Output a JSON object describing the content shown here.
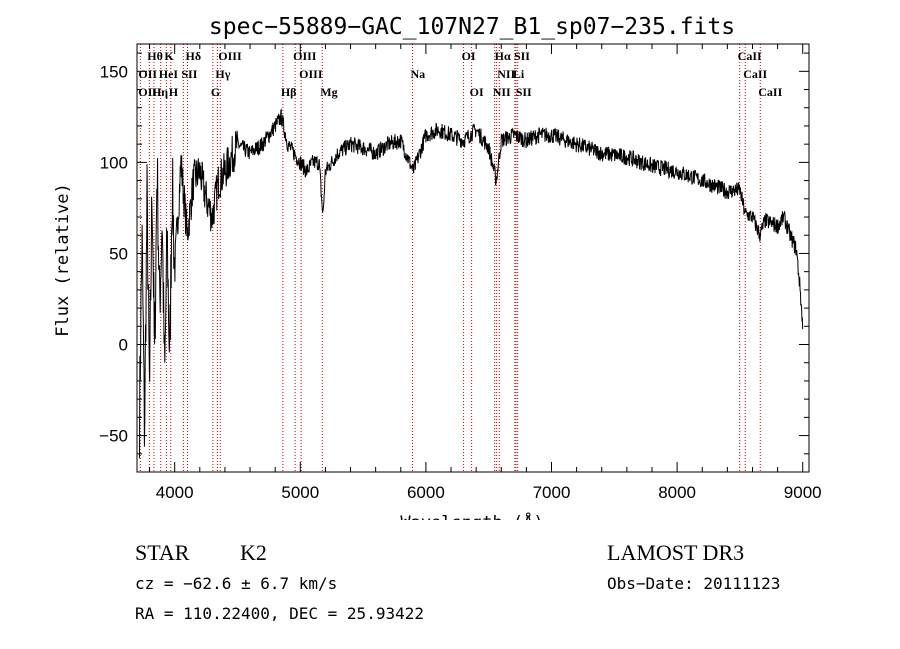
{
  "chart_data": {
    "type": "line",
    "title": "spec−55889−GAC_107N27_B1_sp07−235.fits",
    "xlabel": "Wavelength (Å)",
    "ylabel": "Flux (relative)",
    "xlim": [
      3700,
      9050
    ],
    "ylim": [
      -70,
      165
    ],
    "xticks": [
      4000,
      5000,
      6000,
      7000,
      8000,
      9000
    ],
    "yticks": [
      -50,
      0,
      50,
      100,
      150
    ],
    "ytick_labels": [
      "−50",
      "0",
      "50",
      "100",
      "150"
    ],
    "series": [
      {
        "name": "spectrum",
        "x": [
          3720,
          3740,
          3760,
          3780,
          3800,
          3820,
          3840,
          3860,
          3880,
          3900,
          3920,
          3940,
          3960,
          3980,
          4000,
          4050,
          4100,
          4150,
          4200,
          4250,
          4300,
          4350,
          4400,
          4500,
          4600,
          4700,
          4800,
          4850,
          4900,
          4950,
          5000,
          5050,
          5100,
          5150,
          5180,
          5200,
          5300,
          5400,
          5500,
          5600,
          5700,
          5800,
          5900,
          6000,
          6100,
          6200,
          6300,
          6400,
          6500,
          6560,
          6600,
          6700,
          6800,
          6900,
          7000,
          7200,
          7400,
          7600,
          7800,
          8000,
          8200,
          8400,
          8500,
          8540,
          8600,
          8660,
          8700,
          8800,
          8850,
          8900,
          8950,
          8980,
          9000
        ],
        "y": [
          -40,
          60,
          -50,
          80,
          -30,
          90,
          -10,
          100,
          20,
          70,
          -20,
          60,
          -10,
          90,
          40,
          100,
          60,
          90,
          95,
          80,
          70,
          90,
          95,
          110,
          105,
          110,
          120,
          125,
          110,
          105,
          100,
          95,
          100,
          100,
          70,
          95,
          105,
          110,
          108,
          105,
          110,
          112,
          95,
          115,
          118,
          115,
          112,
          118,
          108,
          90,
          112,
          115,
          112,
          115,
          115,
          110,
          105,
          103,
          98,
          95,
          90,
          84,
          85,
          72,
          70,
          60,
          68,
          65,
          70,
          60,
          52,
          30,
          10
        ]
      }
    ],
    "spectral_lines": [
      {
        "name": "Hθ",
        "wavelength": 3798,
        "row": 1
      },
      {
        "name": "K",
        "wavelength": 3934,
        "row": 1
      },
      {
        "name": "Hδ",
        "wavelength": 4102,
        "row": 1
      },
      {
        "name": "OIII",
        "wavelength": 4363,
        "row": 1
      },
      {
        "name": "OIII",
        "wavelength": 4959,
        "row": 1
      },
      {
        "name": "OI",
        "wavelength": 6300,
        "row": 1
      },
      {
        "name": "Hα",
        "wavelength": 6563,
        "row": 1
      },
      {
        "name": "SII",
        "wavelength": 6717,
        "row": 1
      },
      {
        "name": "CaII",
        "wavelength": 8498,
        "row": 1
      },
      {
        "name": "OII",
        "wavelength": 3727,
        "row": 2
      },
      {
        "name": "HeI",
        "wavelength": 3889,
        "row": 2
      },
      {
        "name": "SII",
        "wavelength": 4069,
        "row": 2
      },
      {
        "name": "Hγ",
        "wavelength": 4340,
        "row": 2
      },
      {
        "name": "OIII",
        "wavelength": 5007,
        "row": 2
      },
      {
        "name": "Na",
        "wavelength": 5893,
        "row": 2
      },
      {
        "name": "NII",
        "wavelength": 6584,
        "row": 2
      },
      {
        "name": "Li",
        "wavelength": 6708,
        "row": 2
      },
      {
        "name": "CaII",
        "wavelength": 8542,
        "row": 2
      },
      {
        "name": "OII",
        "wavelength": 3727,
        "row": 3
      },
      {
        "name": "Hη",
        "wavelength": 3835,
        "row": 3
      },
      {
        "name": "H",
        "wavelength": 3969,
        "row": 3
      },
      {
        "name": "G",
        "wavelength": 4304,
        "row": 3
      },
      {
        "name": "Hβ",
        "wavelength": 4861,
        "row": 3
      },
      {
        "name": "Mg",
        "wavelength": 5175,
        "row": 3
      },
      {
        "name": "OI",
        "wavelength": 6364,
        "row": 3
      },
      {
        "name": "NII",
        "wavelength": 6548,
        "row": 3
      },
      {
        "name": "SII",
        "wavelength": 6731,
        "row": 3
      },
      {
        "name": "CaII",
        "wavelength": 8662,
        "row": 3
      }
    ]
  },
  "info": {
    "object_class": "STAR",
    "subclass": "K2",
    "survey": "LAMOST DR3",
    "cz": "cz = −62.6 ± 6.7 km/s",
    "obs_date": "Obs−Date: 20111123",
    "coords": "RA = 110.22400, DEC =  25.93422"
  },
  "colors": {
    "line": "#000000",
    "marker_lines": "#cc0000"
  }
}
